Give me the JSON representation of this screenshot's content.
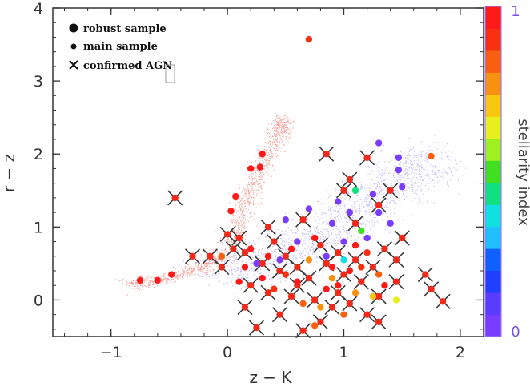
{
  "chart_data": {
    "type": "scatter",
    "xlabel": "z − K",
    "ylabel": "r − z",
    "xlim": [
      -1.5,
      2.2
    ],
    "ylim": [
      -0.5,
      4
    ],
    "x_ticks": [
      -1,
      0,
      1,
      2
    ],
    "x_tick_labels": [
      "−1",
      "0",
      "1",
      "2"
    ],
    "y_ticks": [
      0,
      1,
      2,
      3,
      4
    ],
    "y_tick_labels": [
      "0",
      "1",
      "2",
      "3",
      "4"
    ],
    "grid": false,
    "legend": {
      "placement": "top-left",
      "entries": [
        {
          "label": "robust sample",
          "marker": "large-dot"
        },
        {
          "label": "main sample",
          "marker": "small-dot"
        },
        {
          "label": "confirmed AGN",
          "marker": "cross"
        }
      ]
    },
    "colorbar": {
      "label": "stellarity index",
      "min_label": "0",
      "max_label": "1",
      "colors": [
        "#7a3cff",
        "#5a3cff",
        "#2040ff",
        "#1060ff",
        "#20c0ff",
        "#10e0e0",
        "#10e080",
        "#40e020",
        "#a0f020",
        "#e8f020",
        "#f8c810",
        "#f89010",
        "#f86010",
        "#f83010",
        "#ff1a1a"
      ]
    },
    "series": [
      {
        "marker": "large-dot",
        "points": [
          {
            "x": 0.7,
            "y": 3.57,
            "s": 0.9
          },
          {
            "x": 1.75,
            "y": 1.97,
            "s": 0.85
          },
          {
            "x": 1.3,
            "y": 2.15,
            "s": 0.0
          },
          {
            "x": 1.47,
            "y": 1.95,
            "s": 0.0
          },
          {
            "x": 1.47,
            "y": 1.78,
            "s": 0.0
          },
          {
            "x": 1.5,
            "y": 1.55,
            "s": 0.0
          },
          {
            "x": 1.1,
            "y": 1.5,
            "s": 0.45
          },
          {
            "x": 0.3,
            "y": 2.0,
            "s": 1.0
          },
          {
            "x": 0.28,
            "y": 1.82,
            "s": 1.0
          },
          {
            "x": 0.2,
            "y": 1.8,
            "s": 1.0
          },
          {
            "x": 0.07,
            "y": 1.42,
            "s": 1.0
          },
          {
            "x": 0.03,
            "y": 1.22,
            "s": 1.0
          },
          {
            "x": -0.75,
            "y": 0.27,
            "s": 1.0
          },
          {
            "x": -0.6,
            "y": 0.27,
            "s": 1.0
          },
          {
            "x": -0.48,
            "y": 0.35,
            "s": 1.0
          },
          {
            "x": 1.45,
            "y": 0.0,
            "s": 0.65
          },
          {
            "x": 1.15,
            "y": 0.95,
            "s": 0.5
          },
          {
            "x": 1.2,
            "y": 0.85,
            "s": 0.0
          },
          {
            "x": 1.05,
            "y": 1.2,
            "s": 0.0
          },
          {
            "x": 0.9,
            "y": 1.05,
            "s": 0.0
          },
          {
            "x": 0.7,
            "y": 1.25,
            "s": 0.0
          },
          {
            "x": 0.5,
            "y": 1.1,
            "s": 0.0
          },
          {
            "x": 0.25,
            "y": 0.5,
            "s": 0.0
          },
          {
            "x": 0.45,
            "y": 0.55,
            "s": 0.0
          },
          {
            "x": 0.6,
            "y": 0.8,
            "s": 0.0
          },
          {
            "x": 0.85,
            "y": 0.6,
            "s": 0.0
          },
          {
            "x": 1.0,
            "y": 0.8,
            "s": 0.0
          },
          {
            "x": 1.3,
            "y": 1.2,
            "s": 0.0
          },
          {
            "x": 1.4,
            "y": 1.05,
            "s": 0.0
          },
          {
            "x": 0.95,
            "y": 1.35,
            "s": 0.0
          },
          {
            "x": 1.25,
            "y": 1.45,
            "s": 0.0
          },
          {
            "x": 1.0,
            "y": 0.55,
            "s": 0.35
          },
          {
            "x": 1.3,
            "y": 0.35,
            "s": 0.85
          },
          {
            "x": 0.7,
            "y": 0.55,
            "s": 0.8
          },
          {
            "x": 0.9,
            "y": 0.3,
            "s": 0.75
          },
          {
            "x": 1.1,
            "y": 0.1,
            "s": 0.8
          },
          {
            "x": 1.25,
            "y": 0.05,
            "s": 0.7
          },
          {
            "x": 0.65,
            "y": -0.05,
            "s": 0.85
          },
          {
            "x": 0.8,
            "y": -0.1,
            "s": 0.8
          },
          {
            "x": 1.0,
            "y": -0.2,
            "s": 0.85
          },
          {
            "x": 0.75,
            "y": -0.35,
            "s": 0.85
          },
          {
            "x": 0.5,
            "y": 0.35,
            "s": 0.9
          },
          {
            "x": 1.15,
            "y": 0.45,
            "s": 0.9
          },
          {
            "x": -0.05,
            "y": 0.6,
            "s": 0.85
          },
          {
            "x": 0.4,
            "y": 0.15,
            "s": 0.9
          },
          {
            "x": 1.2,
            "y": 0.65,
            "s": 0.9
          },
          {
            "x": 0.6,
            "y": 0.25,
            "s": 1.0
          },
          {
            "x": 0.85,
            "y": 0.15,
            "s": 1.0
          },
          {
            "x": 1.05,
            "y": 0.4,
            "s": 1.0
          },
          {
            "x": 0.35,
            "y": 0.6,
            "s": 1.0
          },
          {
            "x": 0.15,
            "y": 0.45,
            "s": 1.0
          },
          {
            "x": 0.55,
            "y": 0.7,
            "s": 1.0
          },
          {
            "x": 0.75,
            "y": 0.85,
            "s": 1.0
          },
          {
            "x": 1.1,
            "y": 0.75,
            "s": 1.0
          },
          {
            "x": 0.95,
            "y": 0.2,
            "s": 1.0
          },
          {
            "x": 0.3,
            "y": 0.3,
            "s": 1.0
          },
          {
            "x": 0.1,
            "y": 0.25,
            "s": 1.0
          },
          {
            "x": 0.2,
            "y": 0.7,
            "s": 1.0
          },
          {
            "x": 0.9,
            "y": 0.45,
            "s": 1.0
          },
          {
            "x": 1.35,
            "y": 0.2,
            "s": 1.0
          }
        ]
      },
      {
        "marker": "cross",
        "points": [
          {
            "x": 0.85,
            "y": 2.0
          },
          {
            "x": 1.2,
            "y": 1.95
          },
          {
            "x": 1.05,
            "y": 1.65
          },
          {
            "x": 1.0,
            "y": 1.5
          },
          {
            "x": 1.3,
            "y": 1.3
          },
          {
            "x": 1.4,
            "y": 1.5
          },
          {
            "x": -0.45,
            "y": 1.4
          },
          {
            "x": 0.1,
            "y": 0.85
          },
          {
            "x": 0.35,
            "y": 1.0
          },
          {
            "x": 0.65,
            "y": 1.1
          },
          {
            "x": 1.5,
            "y": 0.85
          },
          {
            "x": 1.45,
            "y": 0.55
          },
          {
            "x": 1.7,
            "y": 0.35
          },
          {
            "x": 1.75,
            "y": 0.15
          },
          {
            "x": 1.85,
            "y": -0.02
          },
          {
            "x": -0.3,
            "y": 0.6
          },
          {
            "x": -0.15,
            "y": 0.6
          },
          {
            "x": 0.0,
            "y": 0.9
          },
          {
            "x": 0.05,
            "y": 0.7
          },
          {
            "x": 0.15,
            "y": 0.65
          },
          {
            "x": 0.3,
            "y": 0.5
          },
          {
            "x": 0.45,
            "y": 0.4
          },
          {
            "x": 0.5,
            "y": 0.6
          },
          {
            "x": 0.6,
            "y": 0.45
          },
          {
            "x": 0.7,
            "y": 0.3
          },
          {
            "x": 0.8,
            "y": 0.75
          },
          {
            "x": 0.85,
            "y": 0.5
          },
          {
            "x": 0.95,
            "y": 0.65
          },
          {
            "x": 1.0,
            "y": 0.35
          },
          {
            "x": 1.1,
            "y": 0.55
          },
          {
            "x": 1.15,
            "y": 0.25
          },
          {
            "x": 1.25,
            "y": 0.45
          },
          {
            "x": 1.3,
            "y": 0.05
          },
          {
            "x": 0.2,
            "y": 0.2
          },
          {
            "x": 0.35,
            "y": 0.1
          },
          {
            "x": 0.55,
            "y": 0.05
          },
          {
            "x": 0.75,
            "y": 0.0
          },
          {
            "x": 0.9,
            "y": -0.1
          },
          {
            "x": 1.05,
            "y": -0.05
          },
          {
            "x": 0.15,
            "y": -0.1
          },
          {
            "x": 0.45,
            "y": -0.2
          },
          {
            "x": 0.8,
            "y": -0.3
          },
          {
            "x": 1.2,
            "y": -0.2
          },
          {
            "x": 1.3,
            "y": -0.3
          },
          {
            "x": 0.25,
            "y": -0.38
          },
          {
            "x": 0.65,
            "y": -0.42
          },
          {
            "x": 1.1,
            "y": 1.05
          },
          {
            "x": 0.4,
            "y": 0.8
          },
          {
            "x": 0.6,
            "y": 0.2
          },
          {
            "x": 1.35,
            "y": 0.7
          },
          {
            "x": -0.05,
            "y": 0.45
          },
          {
            "x": 0.95,
            "y": 0.1
          },
          {
            "x": 1.45,
            "y": 0.25
          }
        ]
      }
    ],
    "distributions": [
      {
        "name": "red-stellar-locus",
        "color": "#f04a3a",
        "path": [
          [
            -0.85,
            0.22
          ],
          [
            -0.6,
            0.28
          ],
          [
            -0.3,
            0.4
          ],
          [
            -0.05,
            0.6
          ],
          [
            0.1,
            1.0
          ],
          [
            0.17,
            1.4
          ],
          [
            0.28,
            1.8
          ],
          [
            0.42,
            2.25
          ],
          [
            0.48,
            2.5
          ]
        ],
        "spread": 0.05,
        "count": 1400
      },
      {
        "name": "purple-galaxy-cloud",
        "color": "#8a78f0",
        "path": [
          [
            -0.05,
            0.35
          ],
          [
            0.3,
            0.55
          ],
          [
            0.7,
            0.8
          ],
          [
            1.0,
            1.1
          ],
          [
            1.3,
            1.45
          ],
          [
            1.55,
            1.75
          ],
          [
            1.75,
            1.95
          ]
        ],
        "spread": 0.17,
        "count": 1700
      }
    ]
  }
}
